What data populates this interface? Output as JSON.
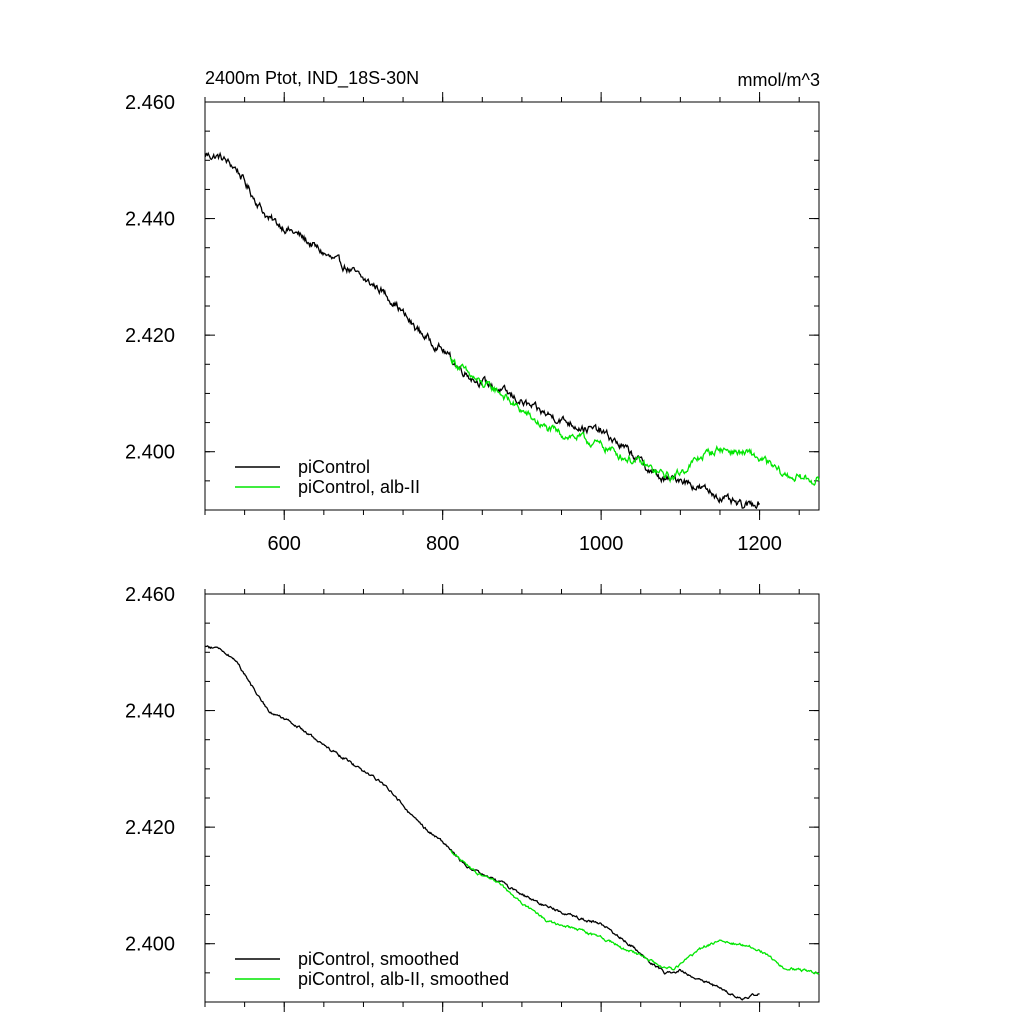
{
  "chart_data": [
    {
      "type": "line",
      "title": "2400m Ptot, IND_18S-30N",
      "units": "mmol/m^3",
      "xlim": [
        500,
        1275
      ],
      "ylim": [
        2.39,
        2.46
      ],
      "x_ticks": [
        600,
        800,
        1000,
        1200
      ],
      "y_ticks": [
        2.4,
        2.42,
        2.44,
        2.46
      ],
      "y_tick_labels": [
        "2.400",
        "2.420",
        "2.440",
        "2.460"
      ],
      "x_tick_labels": [
        "600",
        "800",
        "1000",
        "1200"
      ],
      "grid": false,
      "legend_position": "bottom-left",
      "series": [
        {
          "name": "piControl",
          "color": "#000000",
          "x": [
            500,
            520,
            540,
            560,
            580,
            600,
            620,
            640,
            660,
            680,
            700,
            720,
            740,
            760,
            780,
            800,
            820,
            840,
            860,
            880,
            900,
            920,
            940,
            960,
            980,
            1000,
            1020,
            1040,
            1060,
            1080,
            1100,
            1120,
            1140,
            1160,
            1180,
            1200
          ],
          "y": [
            2.451,
            2.4505,
            2.4485,
            2.444,
            2.44,
            2.4385,
            2.437,
            2.435,
            2.433,
            2.4315,
            2.4295,
            2.428,
            2.4255,
            2.422,
            2.4195,
            2.4175,
            2.4145,
            2.4125,
            2.4115,
            2.41,
            2.4085,
            2.407,
            2.406,
            2.405,
            2.404,
            2.4035,
            2.4015,
            2.3995,
            2.397,
            2.395,
            2.3955,
            2.394,
            2.393,
            2.3915,
            2.3905,
            2.3915
          ],
          "noise": 0.0009
        },
        {
          "name": "piControl, alb-II",
          "color": "#00e600",
          "x": [
            810,
            830,
            850,
            870,
            890,
            910,
            930,
            950,
            970,
            990,
            1010,
            1030,
            1050,
            1070,
            1090,
            1110,
            1130,
            1150,
            1170,
            1190,
            1210,
            1230,
            1250,
            1275
          ],
          "y": [
            2.416,
            2.4135,
            2.4115,
            2.4105,
            2.408,
            2.406,
            2.404,
            2.403,
            2.4025,
            2.4015,
            2.4005,
            2.399,
            2.398,
            2.3965,
            2.3955,
            2.3975,
            2.3995,
            2.4005,
            2.4,
            2.3995,
            2.398,
            2.396,
            2.3955,
            2.395
          ],
          "noise": 0.0009
        }
      ]
    },
    {
      "type": "line",
      "xlim": [
        500,
        1275
      ],
      "ylim": [
        2.39,
        2.46
      ],
      "x_ticks": [
        600,
        800,
        1000,
        1200
      ],
      "y_ticks": [
        2.4,
        2.42,
        2.44,
        2.46
      ],
      "y_tick_labels": [
        "2.400",
        "2.420",
        "2.440",
        "2.460"
      ],
      "grid": false,
      "legend_position": "bottom-left",
      "series": [
        {
          "name": "piControl, smoothed",
          "color": "#000000",
          "x": [
            500,
            520,
            540,
            560,
            580,
            600,
            620,
            640,
            660,
            680,
            700,
            720,
            740,
            760,
            780,
            800,
            820,
            840,
            860,
            880,
            900,
            920,
            940,
            960,
            980,
            1000,
            1020,
            1040,
            1060,
            1080,
            1100,
            1120,
            1140,
            1160,
            1180,
            1200
          ],
          "y": [
            2.451,
            2.4505,
            2.4485,
            2.444,
            2.44,
            2.4385,
            2.437,
            2.435,
            2.433,
            2.4315,
            2.4295,
            2.428,
            2.4255,
            2.422,
            2.4195,
            2.4175,
            2.4145,
            2.4125,
            2.4115,
            2.41,
            2.4085,
            2.407,
            2.406,
            2.405,
            2.404,
            2.4035,
            2.4015,
            2.3995,
            2.397,
            2.395,
            2.3955,
            2.394,
            2.393,
            2.3915,
            2.3905,
            2.3915
          ],
          "noise": 0.0003
        },
        {
          "name": "piControl, alb-II, smoothed",
          "color": "#00e600",
          "x": [
            810,
            830,
            850,
            870,
            890,
            910,
            930,
            950,
            970,
            990,
            1010,
            1030,
            1050,
            1070,
            1090,
            1110,
            1130,
            1150,
            1170,
            1190,
            1210,
            1230,
            1250,
            1275
          ],
          "y": [
            2.416,
            2.4135,
            2.4115,
            2.4105,
            2.408,
            2.406,
            2.404,
            2.403,
            2.4025,
            2.4015,
            2.4005,
            2.399,
            2.398,
            2.3965,
            2.3955,
            2.3975,
            2.3995,
            2.4005,
            2.4,
            2.3995,
            2.398,
            2.396,
            2.3955,
            2.395
          ],
          "noise": 0.0003
        }
      ]
    }
  ]
}
